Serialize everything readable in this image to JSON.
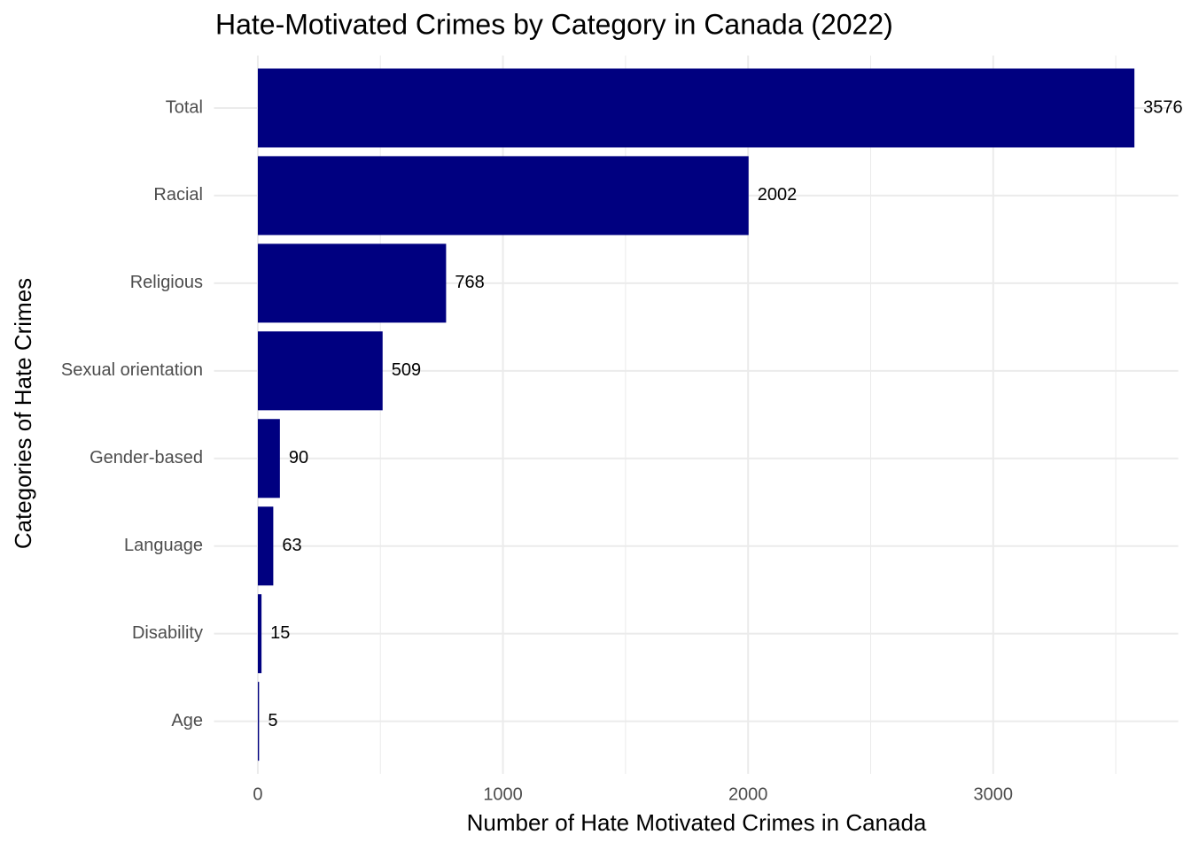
{
  "chart_data": {
    "type": "bar",
    "orientation": "horizontal",
    "title": "Hate-Motivated Crimes by Category in Canada (2022)",
    "x_label": "Number of Hate Motivated Crimes in Canada",
    "y_label": "Categories of Hate Crimes",
    "categories": [
      "Total",
      "Racial",
      "Religious",
      "Sexual orientation",
      "Gender-based",
      "Language",
      "Disability",
      "Age"
    ],
    "values": [
      3576,
      2002,
      768,
      509,
      90,
      63,
      15,
      5
    ],
    "color": "#000080",
    "xlim": [
      -178.8,
      3754.8
    ],
    "xticks": [
      0,
      1000,
      2000,
      3000
    ],
    "minor_xticks": [
      500,
      1500,
      2500,
      3500
    ],
    "grid": true
  }
}
